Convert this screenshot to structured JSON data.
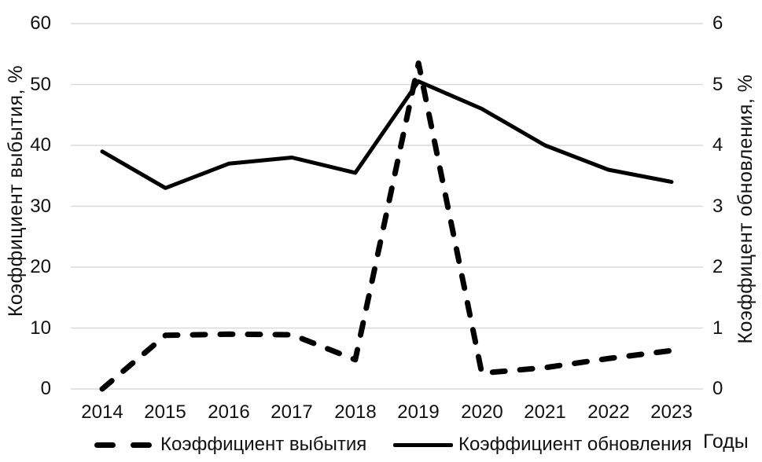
{
  "chart_data": {
    "type": "line",
    "x": [
      "2014",
      "2015",
      "2016",
      "2017",
      "2018",
      "2019",
      "2020",
      "2021",
      "2022",
      "2023"
    ],
    "series": [
      {
        "name": "Коэффициент выбытия",
        "axis": "left",
        "line_style": "dashed",
        "values": [
          0,
          8.8,
          9.0,
          8.9,
          4.8,
          53.5,
          2.6,
          3.5,
          5.0,
          6.3
        ]
      },
      {
        "name": "Коэффициент обновления",
        "axis": "right",
        "line_style": "solid",
        "values": [
          3.9,
          3.3,
          3.7,
          3.8,
          3.55,
          5.05,
          4.6,
          4.0,
          3.6,
          3.4
        ]
      }
    ],
    "title": "",
    "xlabel": "Годы",
    "ylabel_left": "Коэффициент выбытия, %",
    "ylabel_right": "Коэффицент обновления, %",
    "yticks_left": [
      0,
      10,
      20,
      30,
      40,
      50,
      60
    ],
    "yticks_right": [
      0,
      1,
      2,
      3,
      4,
      5,
      6
    ],
    "ylim_left": [
      0,
      60
    ],
    "ylim_right": [
      0,
      6
    ],
    "grid": "horizontal",
    "legend_position": "bottom",
    "colors": {
      "line": "#000000",
      "gridline": "#d9d9d9",
      "text": "#111111"
    }
  }
}
